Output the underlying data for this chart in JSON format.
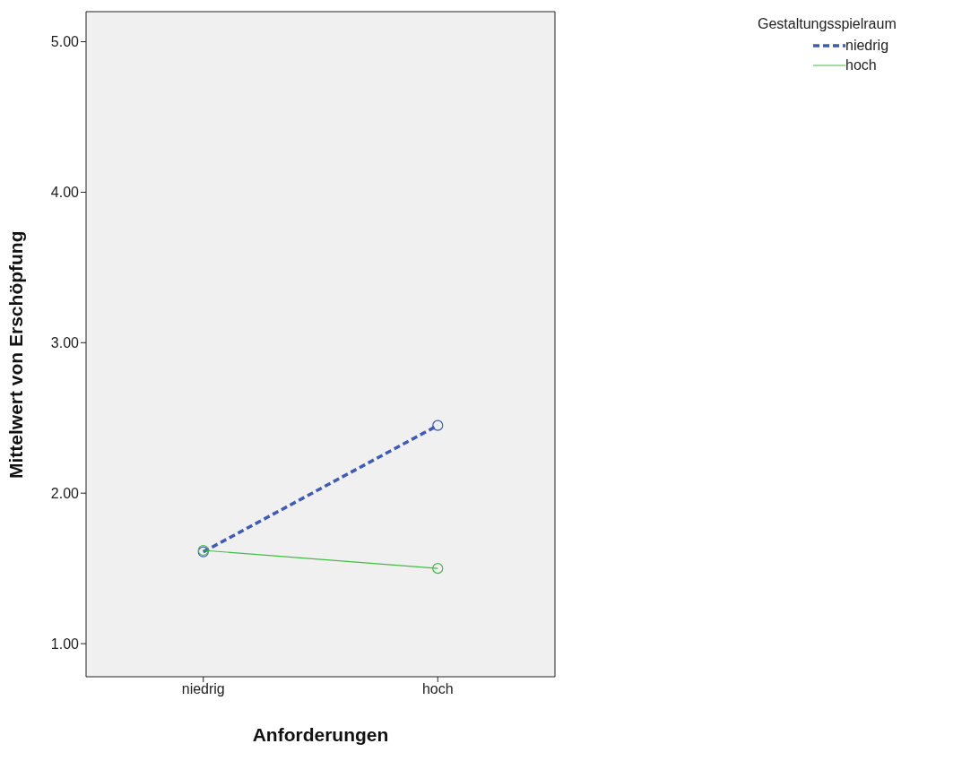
{
  "chart_data": {
    "type": "line",
    "xlabel": "Anforderungen",
    "ylabel": "Mittelwert von Erschöpfung",
    "legend_title": "Gestaltungsspielraum",
    "categories": [
      "niedrig",
      "hoch"
    ],
    "series": [
      {
        "name": "niedrig",
        "color": "#3e5bb5",
        "values": [
          1.61,
          2.45
        ],
        "line_style": "dashed"
      },
      {
        "name": "hoch",
        "color": "#44bb44",
        "values": [
          1.62,
          1.5
        ],
        "line_style": "solid"
      }
    ],
    "ylim": [
      0.78,
      5.2
    ],
    "yticks": [
      {
        "value": 1,
        "label": "1.00"
      },
      {
        "value": 2,
        "label": "2.00"
      },
      {
        "value": 3,
        "label": "3.00"
      },
      {
        "value": 4,
        "label": "4.00"
      },
      {
        "value": 5,
        "label": "5.00"
      }
    ],
    "grid": false,
    "legend": "top right",
    "marker": "circle"
  }
}
